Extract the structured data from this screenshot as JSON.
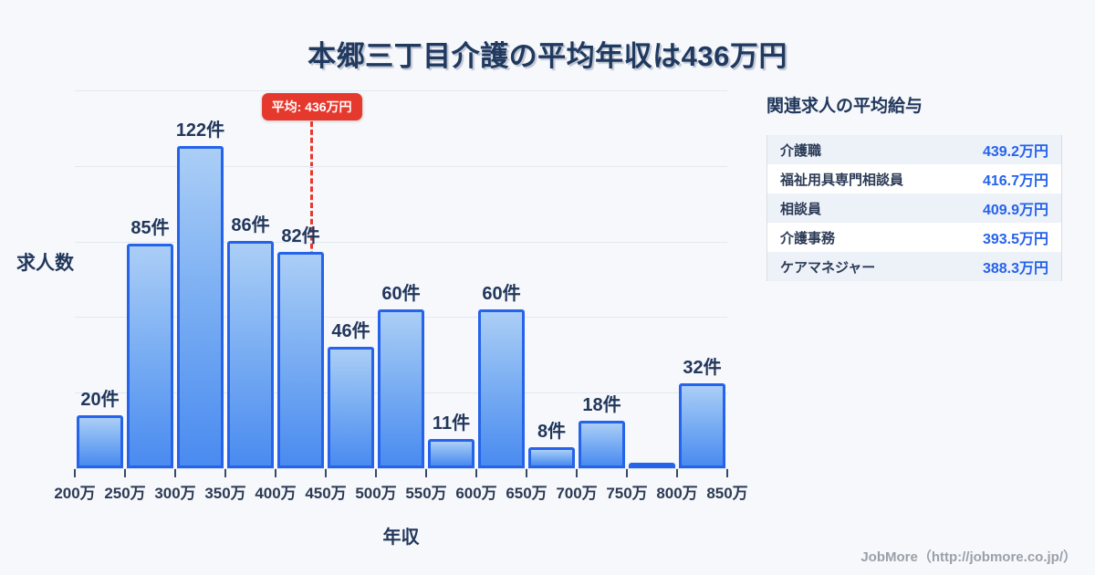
{
  "title": "本郷三丁目介護の平均年収は436万円",
  "colors": {
    "background": "#f7f8fb",
    "title_text": "#20395f",
    "bar_border": "#2563eb",
    "bar_fill_top": "#abcef6",
    "bar_fill_bottom": "#4a8bf0",
    "average_red": "#e6392e",
    "value_blue": "#2563eb",
    "gridline": "#e3e8f1",
    "footer_text": "#9aa0aa"
  },
  "chart_data": {
    "type": "bar",
    "title": "本郷三丁目介護の平均年収は436万円",
    "xlabel": "年収",
    "ylabel": "求人数",
    "x_ticks": [
      "200万",
      "250万",
      "300万",
      "350万",
      "400万",
      "450万",
      "500万",
      "550万",
      "600万",
      "650万",
      "700万",
      "750万",
      "800万",
      "850万"
    ],
    "x_range": [
      200,
      850
    ],
    "bin_width_万": 50,
    "values": [
      20,
      85,
      122,
      86,
      82,
      46,
      60,
      11,
      60,
      8,
      18,
      2,
      32
    ],
    "bar_labels": [
      "20件",
      "85件",
      "122件",
      "86件",
      "82件",
      "46件",
      "60件",
      "11件",
      "60件",
      "8件",
      "18件",
      "",
      "32件"
    ],
    "ylim": [
      0,
      143
    ],
    "grid": true,
    "gridline_count": 5,
    "legend": "none",
    "average": {
      "value": 436,
      "label": "平均: 436万円"
    }
  },
  "side_panel": {
    "title": "関連求人の平均給与",
    "rows": [
      {
        "label": "介護職",
        "value": "439.2万円"
      },
      {
        "label": "福祉用具専門相談員",
        "value": "416.7万円"
      },
      {
        "label": "相談員",
        "value": "409.9万円"
      },
      {
        "label": "介護事務",
        "value": "393.5万円"
      },
      {
        "label": "ケアマネジャー",
        "value": "388.3万円"
      }
    ]
  },
  "footer": {
    "credit": "JobMore（http://jobmore.co.jp/）"
  }
}
